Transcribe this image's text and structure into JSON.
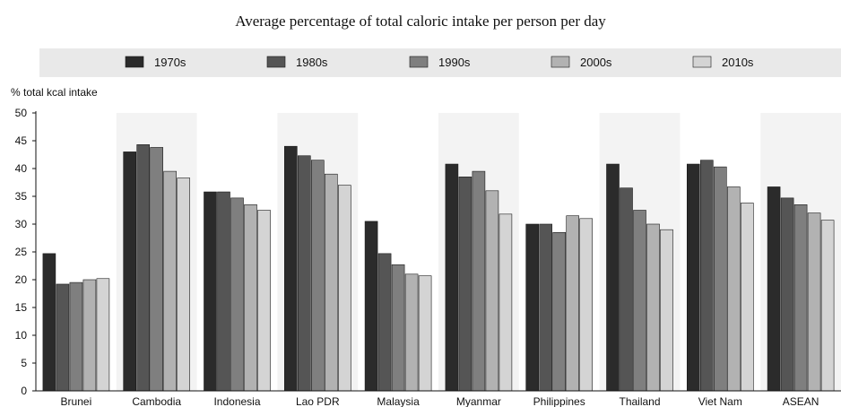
{
  "chart_data": {
    "type": "bar",
    "title": "Average percentage of total caloric intake per person per day",
    "ylabel": "% total kcal intake",
    "xlabel": "",
    "ylim": [
      0,
      50
    ],
    "yticks": [
      0,
      5,
      10,
      15,
      20,
      25,
      30,
      35,
      40,
      45,
      50
    ],
    "grid": false,
    "legend_position": "top",
    "categories": [
      "Brunei",
      "Cambodia",
      "Indonesia",
      "Lao PDR",
      "Malaysia",
      "Myanmar",
      "Philippines",
      "Thailand",
      "Viet Nam",
      "ASEAN"
    ],
    "series": [
      {
        "name": "1970s",
        "color": "#2b2b2b",
        "values": [
          24.7,
          43.0,
          35.8,
          44.0,
          30.5,
          40.8,
          30.0,
          40.8,
          40.8,
          36.7
        ]
      },
      {
        "name": "1980s",
        "color": "#555555",
        "values": [
          19.2,
          44.3,
          35.8,
          42.3,
          24.7,
          38.5,
          30.0,
          36.5,
          41.5,
          34.7
        ]
      },
      {
        "name": "1990s",
        "color": "#7f7f7f",
        "values": [
          19.5,
          43.8,
          34.7,
          41.5,
          22.7,
          39.5,
          28.5,
          32.5,
          40.3,
          33.5
        ]
      },
      {
        "name": "2000s",
        "color": "#b2b2b2",
        "values": [
          20.0,
          39.5,
          33.5,
          39.0,
          21.0,
          36.0,
          31.5,
          30.0,
          36.7,
          32.0
        ]
      },
      {
        "name": "2010s",
        "color": "#d4d4d4",
        "values": [
          20.2,
          38.3,
          32.5,
          37.0,
          20.7,
          31.8,
          31.0,
          29.0,
          33.8,
          30.7
        ]
      }
    ]
  }
}
